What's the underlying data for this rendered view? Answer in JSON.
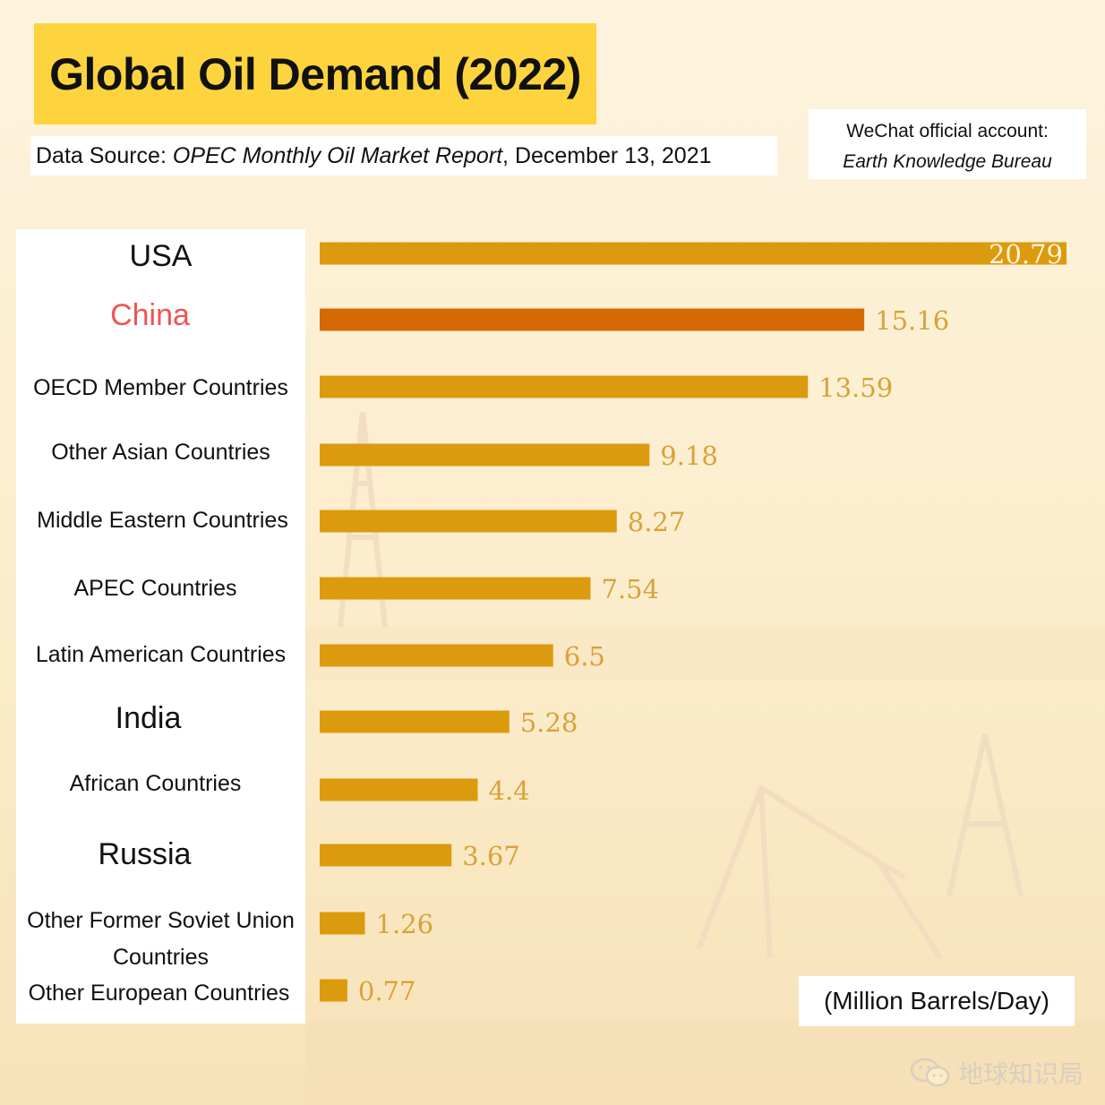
{
  "title": "Global Oil Demand (2022)",
  "source": {
    "prefix": "Data Source: ",
    "report": "OPEC Monthly Oil Market Report",
    "suffix": ", December 13, 2021"
  },
  "wechat": {
    "line1": "WeChat official account:",
    "line2": "Earth Knowledge Bureau"
  },
  "unit_label": "(Million Barrels/Day)",
  "watermark_text": "地球知识局",
  "colors": {
    "bar": "#dc9b0f",
    "bar_highlight": "#d46a06",
    "value_label": "#d9a23a",
    "value_label_on_bar": "#fdf3dd",
    "highlight_text": "#f05454"
  },
  "chart_data": {
    "type": "bar",
    "orientation": "horizontal",
    "title": "Global Oil Demand (2022)",
    "categories": [
      "USA",
      "China",
      "OECD Member Countries",
      "Other Asian Countries",
      "Middle Eastern Countries",
      "APEC Countries",
      "Latin American Countries",
      "India",
      "African Countries",
      "Russia",
      "Other Former Soviet Union Countries",
      "Other European Countries"
    ],
    "values": [
      20.79,
      15.16,
      13.59,
      9.18,
      8.27,
      7.54,
      6.5,
      5.28,
      4.4,
      3.67,
      1.26,
      0.77
    ],
    "value_labels": [
      "20.79",
      "15.16",
      "13.59",
      "9.18",
      "8.27",
      "7.54",
      "6.5",
      "5.28",
      "4.4",
      "3.67",
      "1.26",
      "0.77"
    ],
    "highlighted_category": "China",
    "unit": "(Million Barrels/Day)",
    "xlim": [
      0,
      20.79
    ],
    "grid": false,
    "legend": "none"
  }
}
